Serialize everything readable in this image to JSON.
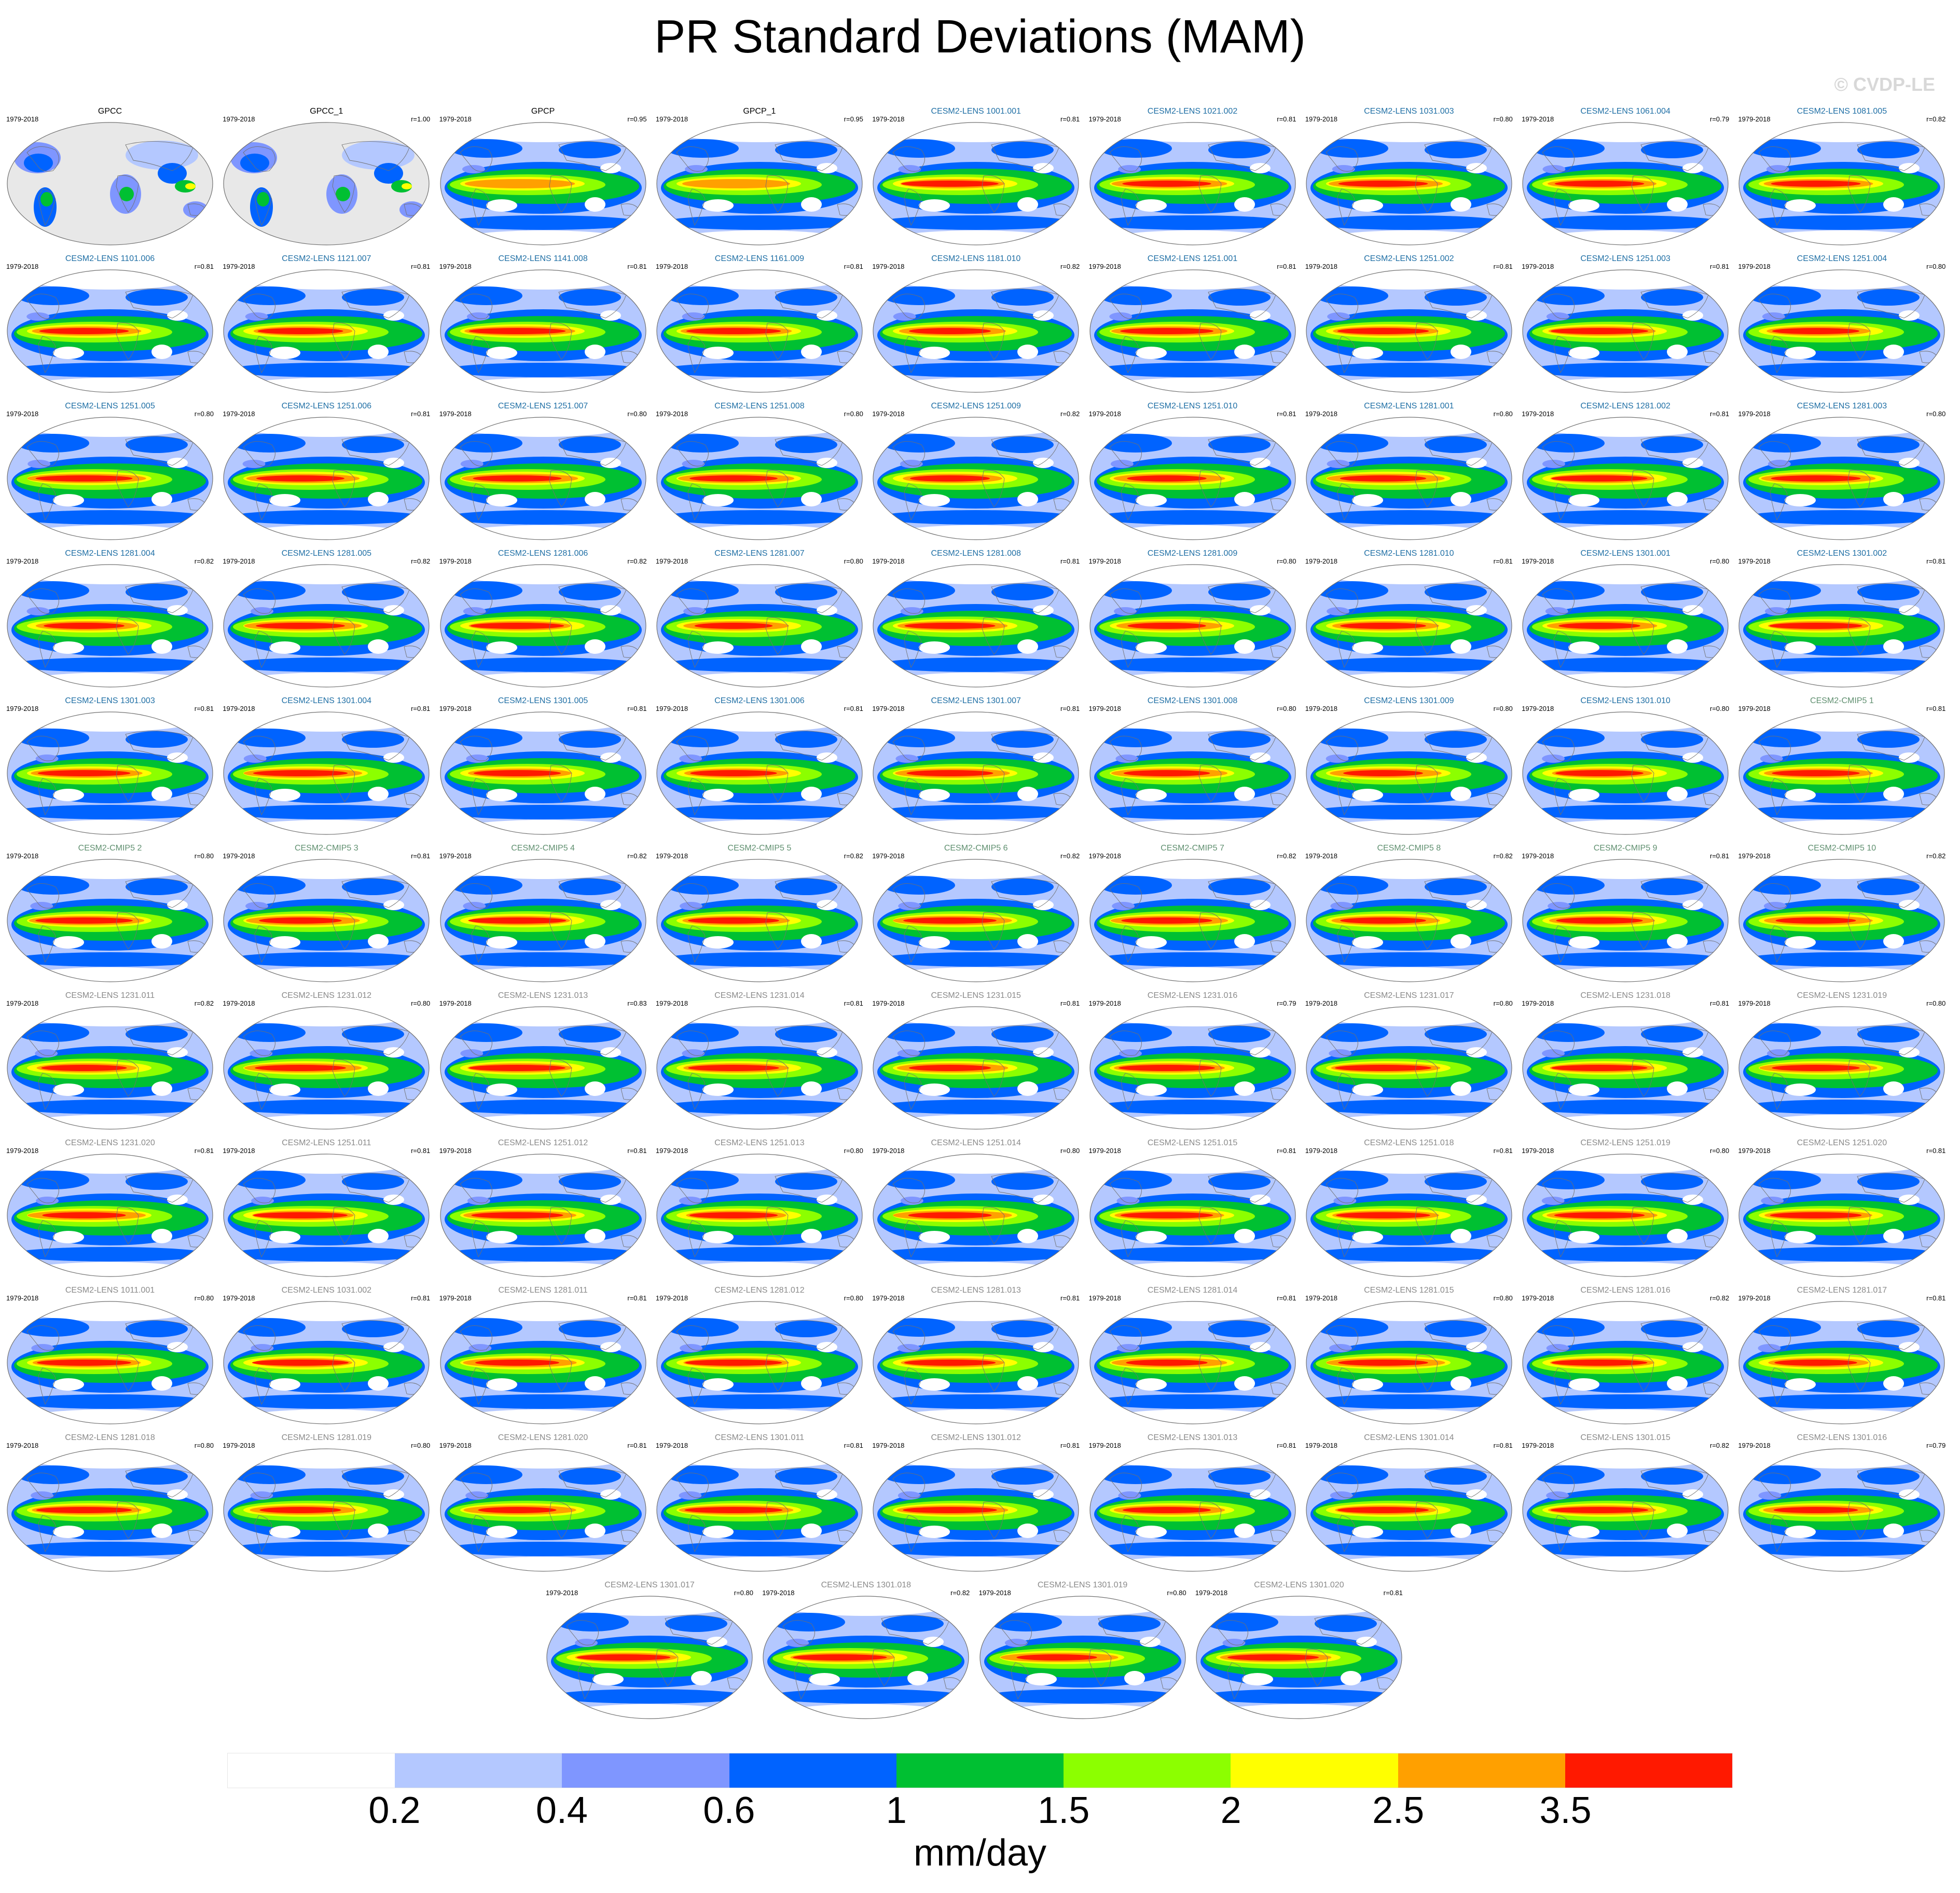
{
  "title": "PR Standard Deviations (MAM)",
  "watermark": "© CVDP-LE",
  "colors": {
    "obs_title": "#000000",
    "lens_title": "#1f6fa5",
    "cmip_title": "#5f8f6f",
    "gray_title": "#8a8a8a",
    "land": "#e8e8e8",
    "coast": "#707070"
  },
  "panels": [
    {
      "name": "GPCC",
      "period": "1979-2018",
      "r": "",
      "style": "obs",
      "kind": "obs_land"
    },
    {
      "name": "GPCC_1",
      "period": "1979-2018",
      "r": "r=1.00",
      "style": "obs",
      "kind": "obs_land"
    },
    {
      "name": "GPCP",
      "period": "1979-2018",
      "r": "r=0.95",
      "style": "obs",
      "kind": "obs"
    },
    {
      "name": "GPCP_1",
      "period": "1979-2018",
      "r": "r=0.95",
      "style": "obs",
      "kind": "obs"
    },
    {
      "name": "CESM2-LENS 1001.001",
      "period": "1979-2018",
      "r": "r=0.81",
      "style": "lens",
      "kind": "model"
    },
    {
      "name": "CESM2-LENS 1021.002",
      "period": "1979-2018",
      "r": "r=0.81",
      "style": "lens",
      "kind": "model"
    },
    {
      "name": "CESM2-LENS 1031.003",
      "period": "1979-2018",
      "r": "r=0.80",
      "style": "lens",
      "kind": "model"
    },
    {
      "name": "CESM2-LENS 1061.004",
      "period": "1979-2018",
      "r": "r=0.79",
      "style": "lens",
      "kind": "model"
    },
    {
      "name": "CESM2-LENS 1081.005",
      "period": "1979-2018",
      "r": "r=0.82",
      "style": "lens",
      "kind": "model"
    },
    {
      "name": "CESM2-LENS 1101.006",
      "period": "1979-2018",
      "r": "r=0.81",
      "style": "lens",
      "kind": "model"
    },
    {
      "name": "CESM2-LENS 1121.007",
      "period": "1979-2018",
      "r": "r=0.81",
      "style": "lens",
      "kind": "model"
    },
    {
      "name": "CESM2-LENS 1141.008",
      "period": "1979-2018",
      "r": "r=0.81",
      "style": "lens",
      "kind": "model"
    },
    {
      "name": "CESM2-LENS 1161.009",
      "period": "1979-2018",
      "r": "r=0.81",
      "style": "lens",
      "kind": "model"
    },
    {
      "name": "CESM2-LENS 1181.010",
      "period": "1979-2018",
      "r": "r=0.82",
      "style": "lens",
      "kind": "model"
    },
    {
      "name": "CESM2-LENS 1251.001",
      "period": "1979-2018",
      "r": "r=0.81",
      "style": "lens",
      "kind": "model"
    },
    {
      "name": "CESM2-LENS 1251.002",
      "period": "1979-2018",
      "r": "r=0.81",
      "style": "lens",
      "kind": "model"
    },
    {
      "name": "CESM2-LENS 1251.003",
      "period": "1979-2018",
      "r": "r=0.81",
      "style": "lens",
      "kind": "model"
    },
    {
      "name": "CESM2-LENS 1251.004",
      "period": "1979-2018",
      "r": "r=0.80",
      "style": "lens",
      "kind": "model"
    },
    {
      "name": "CESM2-LENS 1251.005",
      "period": "1979-2018",
      "r": "r=0.80",
      "style": "lens",
      "kind": "model"
    },
    {
      "name": "CESM2-LENS 1251.006",
      "period": "1979-2018",
      "r": "r=0.81",
      "style": "lens",
      "kind": "model"
    },
    {
      "name": "CESM2-LENS 1251.007",
      "period": "1979-2018",
      "r": "r=0.80",
      "style": "lens",
      "kind": "model"
    },
    {
      "name": "CESM2-LENS 1251.008",
      "period": "1979-2018",
      "r": "r=0.80",
      "style": "lens",
      "kind": "model"
    },
    {
      "name": "CESM2-LENS 1251.009",
      "period": "1979-2018",
      "r": "r=0.82",
      "style": "lens",
      "kind": "model"
    },
    {
      "name": "CESM2-LENS 1251.010",
      "period": "1979-2018",
      "r": "r=0.81",
      "style": "lens",
      "kind": "model"
    },
    {
      "name": "CESM2-LENS 1281.001",
      "period": "1979-2018",
      "r": "r=0.80",
      "style": "lens",
      "kind": "model"
    },
    {
      "name": "CESM2-LENS 1281.002",
      "period": "1979-2018",
      "r": "r=0.81",
      "style": "lens",
      "kind": "model"
    },
    {
      "name": "CESM2-LENS 1281.003",
      "period": "1979-2018",
      "r": "r=0.80",
      "style": "lens",
      "kind": "model"
    },
    {
      "name": "CESM2-LENS 1281.004",
      "period": "1979-2018",
      "r": "r=0.82",
      "style": "lens",
      "kind": "model"
    },
    {
      "name": "CESM2-LENS 1281.005",
      "period": "1979-2018",
      "r": "r=0.82",
      "style": "lens",
      "kind": "model"
    },
    {
      "name": "CESM2-LENS 1281.006",
      "period": "1979-2018",
      "r": "r=0.82",
      "style": "lens",
      "kind": "model"
    },
    {
      "name": "CESM2-LENS 1281.007",
      "period": "1979-2018",
      "r": "r=0.80",
      "style": "lens",
      "kind": "model"
    },
    {
      "name": "CESM2-LENS 1281.008",
      "period": "1979-2018",
      "r": "r=0.81",
      "style": "lens",
      "kind": "model"
    },
    {
      "name": "CESM2-LENS 1281.009",
      "period": "1979-2018",
      "r": "r=0.80",
      "style": "lens",
      "kind": "model"
    },
    {
      "name": "CESM2-LENS 1281.010",
      "period": "1979-2018",
      "r": "r=0.81",
      "style": "lens",
      "kind": "model"
    },
    {
      "name": "CESM2-LENS 1301.001",
      "period": "1979-2018",
      "r": "r=0.80",
      "style": "lens",
      "kind": "model"
    },
    {
      "name": "CESM2-LENS 1301.002",
      "period": "1979-2018",
      "r": "r=0.81",
      "style": "lens",
      "kind": "model"
    },
    {
      "name": "CESM2-LENS 1301.003",
      "period": "1979-2018",
      "r": "r=0.81",
      "style": "lens",
      "kind": "model"
    },
    {
      "name": "CESM2-LENS 1301.004",
      "period": "1979-2018",
      "r": "r=0.81",
      "style": "lens",
      "kind": "model"
    },
    {
      "name": "CESM2-LENS 1301.005",
      "period": "1979-2018",
      "r": "r=0.81",
      "style": "lens",
      "kind": "model"
    },
    {
      "name": "CESM2-LENS 1301.006",
      "period": "1979-2018",
      "r": "r=0.81",
      "style": "lens",
      "kind": "model"
    },
    {
      "name": "CESM2-LENS 1301.007",
      "period": "1979-2018",
      "r": "r=0.81",
      "style": "lens",
      "kind": "model"
    },
    {
      "name": "CESM2-LENS 1301.008",
      "period": "1979-2018",
      "r": "r=0.80",
      "style": "lens",
      "kind": "model"
    },
    {
      "name": "CESM2-LENS 1301.009",
      "period": "1979-2018",
      "r": "r=0.80",
      "style": "lens",
      "kind": "model"
    },
    {
      "name": "CESM2-LENS 1301.010",
      "period": "1979-2018",
      "r": "r=0.80",
      "style": "lens",
      "kind": "model"
    },
    {
      "name": "CESM2-CMIP5 1",
      "period": "1979-2018",
      "r": "r=0.81",
      "style": "cmip",
      "kind": "model"
    },
    {
      "name": "CESM2-CMIP5 2",
      "period": "1979-2018",
      "r": "r=0.80",
      "style": "cmip",
      "kind": "model"
    },
    {
      "name": "CESM2-CMIP5 3",
      "period": "1979-2018",
      "r": "r=0.81",
      "style": "cmip",
      "kind": "model"
    },
    {
      "name": "CESM2-CMIP5 4",
      "period": "1979-2018",
      "r": "r=0.82",
      "style": "cmip",
      "kind": "model"
    },
    {
      "name": "CESM2-CMIP5 5",
      "period": "1979-2018",
      "r": "r=0.82",
      "style": "cmip",
      "kind": "model"
    },
    {
      "name": "CESM2-CMIP5 6",
      "period": "1979-2018",
      "r": "r=0.82",
      "style": "cmip",
      "kind": "model"
    },
    {
      "name": "CESM2-CMIP5 7",
      "period": "1979-2018",
      "r": "r=0.82",
      "style": "cmip",
      "kind": "model"
    },
    {
      "name": "CESM2-CMIP5 8",
      "period": "1979-2018",
      "r": "r=0.82",
      "style": "cmip",
      "kind": "model"
    },
    {
      "name": "CESM2-CMIP5 9",
      "period": "1979-2018",
      "r": "r=0.81",
      "style": "cmip",
      "kind": "model"
    },
    {
      "name": "CESM2-CMIP5 10",
      "period": "1979-2018",
      "r": "r=0.82",
      "style": "cmip",
      "kind": "model"
    },
    {
      "name": "CESM2-LENS 1231.011",
      "period": "1979-2018",
      "r": "r=0.82",
      "style": "gray",
      "kind": "model"
    },
    {
      "name": "CESM2-LENS 1231.012",
      "period": "1979-2018",
      "r": "r=0.80",
      "style": "gray",
      "kind": "model"
    },
    {
      "name": "CESM2-LENS 1231.013",
      "period": "1979-2018",
      "r": "r=0.83",
      "style": "gray",
      "kind": "model"
    },
    {
      "name": "CESM2-LENS 1231.014",
      "period": "1979-2018",
      "r": "r=0.81",
      "style": "gray",
      "kind": "model"
    },
    {
      "name": "CESM2-LENS 1231.015",
      "period": "1979-2018",
      "r": "r=0.81",
      "style": "gray",
      "kind": "model"
    },
    {
      "name": "CESM2-LENS 1231.016",
      "period": "1979-2018",
      "r": "r=0.79",
      "style": "gray",
      "kind": "model"
    },
    {
      "name": "CESM2-LENS 1231.017",
      "period": "1979-2018",
      "r": "r=0.80",
      "style": "gray",
      "kind": "model"
    },
    {
      "name": "CESM2-LENS 1231.018",
      "period": "1979-2018",
      "r": "r=0.81",
      "style": "gray",
      "kind": "model"
    },
    {
      "name": "CESM2-LENS 1231.019",
      "period": "1979-2018",
      "r": "r=0.80",
      "style": "gray",
      "kind": "model"
    },
    {
      "name": "CESM2-LENS 1231.020",
      "period": "1979-2018",
      "r": "r=0.81",
      "style": "gray",
      "kind": "model"
    },
    {
      "name": "CESM2-LENS 1251.011",
      "period": "1979-2018",
      "r": "r=0.81",
      "style": "gray",
      "kind": "model"
    },
    {
      "name": "CESM2-LENS 1251.012",
      "period": "1979-2018",
      "r": "r=0.81",
      "style": "gray",
      "kind": "model"
    },
    {
      "name": "CESM2-LENS 1251.013",
      "period": "1979-2018",
      "r": "r=0.80",
      "style": "gray",
      "kind": "model"
    },
    {
      "name": "CESM2-LENS 1251.014",
      "period": "1979-2018",
      "r": "r=0.80",
      "style": "gray",
      "kind": "model"
    },
    {
      "name": "CESM2-LENS 1251.015",
      "period": "1979-2018",
      "r": "r=0.81",
      "style": "gray",
      "kind": "model"
    },
    {
      "name": "CESM2-LENS 1251.018",
      "period": "1979-2018",
      "r": "r=0.81",
      "style": "gray",
      "kind": "model"
    },
    {
      "name": "CESM2-LENS 1251.019",
      "period": "1979-2018",
      "r": "r=0.80",
      "style": "gray",
      "kind": "model"
    },
    {
      "name": "CESM2-LENS 1251.020",
      "period": "1979-2018",
      "r": "r=0.81",
      "style": "gray",
      "kind": "model"
    },
    {
      "name": "CESM2-LENS 1011.001",
      "period": "1979-2018",
      "r": "r=0.80",
      "style": "gray",
      "kind": "model"
    },
    {
      "name": "CESM2-LENS 1031.002",
      "period": "1979-2018",
      "r": "r=0.81",
      "style": "gray",
      "kind": "model"
    },
    {
      "name": "CESM2-LENS 1281.011",
      "period": "1979-2018",
      "r": "r=0.81",
      "style": "gray",
      "kind": "model"
    },
    {
      "name": "CESM2-LENS 1281.012",
      "period": "1979-2018",
      "r": "r=0.80",
      "style": "gray",
      "kind": "model"
    },
    {
      "name": "CESM2-LENS 1281.013",
      "period": "1979-2018",
      "r": "r=0.81",
      "style": "gray",
      "kind": "model"
    },
    {
      "name": "CESM2-LENS 1281.014",
      "period": "1979-2018",
      "r": "r=0.81",
      "style": "gray",
      "kind": "model"
    },
    {
      "name": "CESM2-LENS 1281.015",
      "period": "1979-2018",
      "r": "r=0.80",
      "style": "gray",
      "kind": "model"
    },
    {
      "name": "CESM2-LENS 1281.016",
      "period": "1979-2018",
      "r": "r=0.82",
      "style": "gray",
      "kind": "model"
    },
    {
      "name": "CESM2-LENS 1281.017",
      "period": "1979-2018",
      "r": "r=0.81",
      "style": "gray",
      "kind": "model"
    },
    {
      "name": "CESM2-LENS 1281.018",
      "period": "1979-2018",
      "r": "r=0.80",
      "style": "gray",
      "kind": "model"
    },
    {
      "name": "CESM2-LENS 1281.019",
      "period": "1979-2018",
      "r": "r=0.80",
      "style": "gray",
      "kind": "model"
    },
    {
      "name": "CESM2-LENS 1281.020",
      "period": "1979-2018",
      "r": "r=0.81",
      "style": "gray",
      "kind": "model"
    },
    {
      "name": "CESM2-LENS 1301.011",
      "period": "1979-2018",
      "r": "r=0.81",
      "style": "gray",
      "kind": "model"
    },
    {
      "name": "CESM2-LENS 1301.012",
      "period": "1979-2018",
      "r": "r=0.81",
      "style": "gray",
      "kind": "model"
    },
    {
      "name": "CESM2-LENS 1301.013",
      "period": "1979-2018",
      "r": "r=0.81",
      "style": "gray",
      "kind": "model"
    },
    {
      "name": "CESM2-LENS 1301.014",
      "period": "1979-2018",
      "r": "r=0.81",
      "style": "gray",
      "kind": "model"
    },
    {
      "name": "CESM2-LENS 1301.015",
      "period": "1979-2018",
      "r": "r=0.82",
      "style": "gray",
      "kind": "model"
    },
    {
      "name": "CESM2-LENS 1301.016",
      "period": "1979-2018",
      "r": "r=0.79",
      "style": "gray",
      "kind": "model"
    },
    {
      "name": "CESM2-LENS 1301.017",
      "period": "1979-2018",
      "r": "r=0.80",
      "style": "gray",
      "kind": "model"
    },
    {
      "name": "CESM2-LENS 1301.018",
      "period": "1979-2018",
      "r": "r=0.82",
      "style": "gray",
      "kind": "model"
    },
    {
      "name": "CESM2-LENS 1301.019",
      "period": "1979-2018",
      "r": "r=0.80",
      "style": "gray",
      "kind": "model"
    },
    {
      "name": "CESM2-LENS 1301.020",
      "period": "1979-2018",
      "r": "r=0.81",
      "style": "gray",
      "kind": "model"
    }
  ],
  "colorbar": {
    "units": "mm/day",
    "colors": [
      "#ffffff",
      "#b4c8ff",
      "#7f96ff",
      "#0063ff",
      "#00c032",
      "#8cff00",
      "#ffff00",
      "#ffa000",
      "#ff1900"
    ],
    "labels": [
      "0.2",
      "0.4",
      "0.6",
      "1",
      "1.5",
      "2",
      "2.5",
      "3.5"
    ]
  }
}
